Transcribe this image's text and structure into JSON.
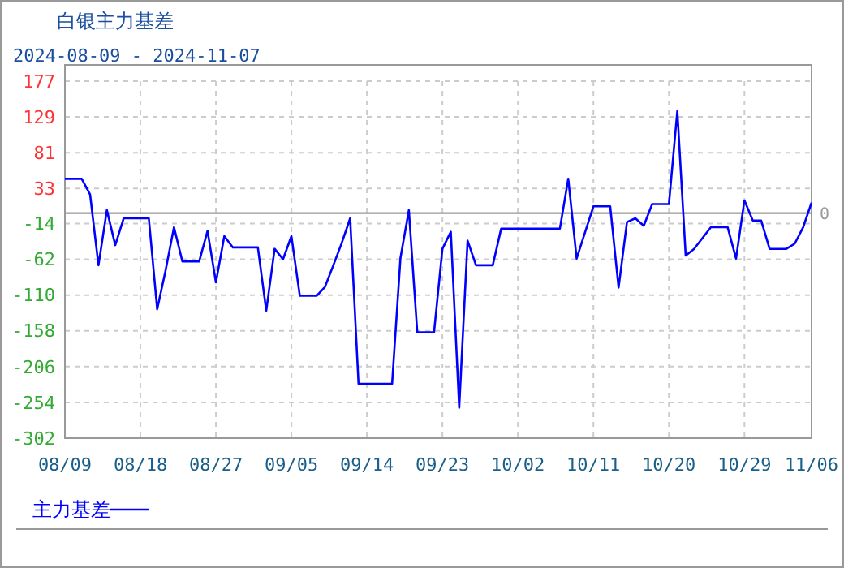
{
  "chart_data": {
    "type": "line",
    "title": "白银主力基差",
    "subtitle": "2024-08-09 - 2024-11-07",
    "x": [
      "2024-08-09",
      "2024-08-11",
      "2024-08-12",
      "2024-08-13",
      "2024-08-14",
      "2024-08-15",
      "2024-08-16",
      "2024-08-19",
      "2024-08-20",
      "2024-08-21",
      "2024-08-22",
      "2024-08-23",
      "2024-08-25",
      "2024-08-26",
      "2024-08-27",
      "2024-08-28",
      "2024-08-29",
      "2024-09-01",
      "2024-09-02",
      "2024-09-03",
      "2024-09-04",
      "2024-09-05",
      "2024-09-06",
      "2024-09-08",
      "2024-09-09",
      "2024-09-10",
      "2024-09-11",
      "2024-09-12",
      "2024-09-13",
      "2024-09-17",
      "2024-09-18",
      "2024-09-19",
      "2024-09-20",
      "2024-09-22",
      "2024-09-23",
      "2024-09-24",
      "2024-09-25",
      "2024-09-26",
      "2024-09-27",
      "2024-09-29",
      "2024-09-30",
      "2024-10-07",
      "2024-10-08",
      "2024-10-09",
      "2024-10-10",
      "2024-10-11",
      "2024-10-13",
      "2024-10-14",
      "2024-10-15",
      "2024-10-16",
      "2024-10-17",
      "2024-10-18",
      "2024-10-20",
      "2024-10-21",
      "2024-10-22",
      "2024-10-23",
      "2024-10-25",
      "2024-10-27",
      "2024-10-28",
      "2024-10-29",
      "2024-10-30",
      "2024-10-31",
      "2024-11-01",
      "2024-11-03",
      "2024-11-04",
      "2024-11-05",
      "2024-11-06"
    ],
    "series": [
      {
        "name": "主力基差",
        "color": "#0000ff",
        "values": [
          46,
          46,
          25,
          -70,
          4,
          -43,
          -7,
          -7,
          -129,
          -77,
          -19,
          -65,
          -65,
          -24,
          -93,
          -31,
          -46,
          -46,
          -131,
          -48,
          -62,
          -31,
          -111,
          -111,
          -99,
          -70,
          -40,
          -7,
          -229,
          -229,
          -60,
          4,
          -160,
          -160,
          -48,
          -25,
          -261,
          -37,
          -70,
          -70,
          -21,
          -21,
          46,
          -61,
          -26,
          9,
          9,
          -100,
          -12,
          -7,
          -17,
          12,
          12,
          137,
          -57,
          -48,
          -19,
          -19,
          -61,
          17,
          -10,
          -10,
          -48,
          -48,
          -41,
          -19,
          14
        ]
      }
    ],
    "xlim": [
      "2024-08-09",
      "2024-11-06"
    ],
    "xticks": [
      {
        "value": "2024-08-09",
        "label": "08/09"
      },
      {
        "value": "2024-08-18",
        "label": "08/18"
      },
      {
        "value": "2024-08-27",
        "label": "08/27"
      },
      {
        "value": "2024-09-05",
        "label": "09/05"
      },
      {
        "value": "2024-09-14",
        "label": "09/14"
      },
      {
        "value": "2024-09-23",
        "label": "09/23"
      },
      {
        "value": "2024-10-02",
        "label": "10/02"
      },
      {
        "value": "2024-10-11",
        "label": "10/11"
      },
      {
        "value": "2024-10-20",
        "label": "10/20"
      },
      {
        "value": "2024-10-29",
        "label": "10/29"
      },
      {
        "value": "2024-11-06",
        "label": "11/06"
      }
    ],
    "ylim": [
      -302,
      177
    ],
    "yticks": [
      177,
      129,
      81,
      33,
      -14,
      -62,
      -110,
      -158,
      -206,
      -254,
      -302
    ],
    "ref_lines": [
      {
        "axis": "y",
        "value": 0,
        "label": "0",
        "color": "#999999"
      }
    ],
    "grid": true,
    "legend": "bottom left",
    "marker": "none",
    "line_style": "solid"
  }
}
